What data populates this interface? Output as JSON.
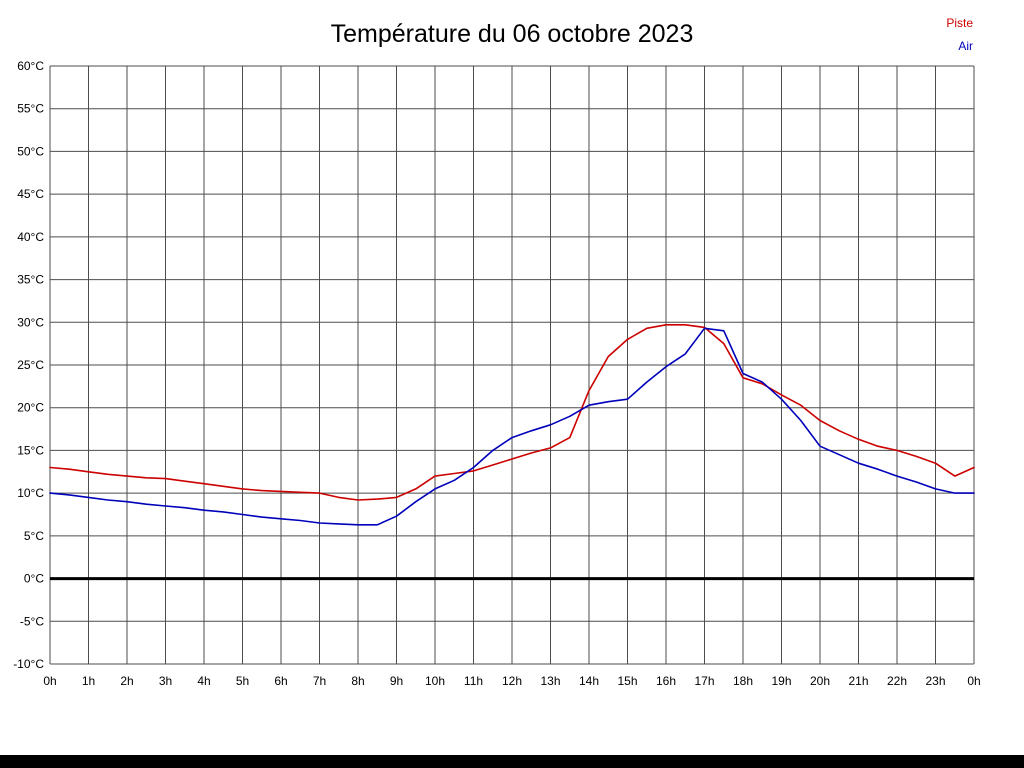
{
  "title": "Température du 06 octobre 2023",
  "legend": {
    "piste": {
      "label": "Piste",
      "color": "#cc0000"
    },
    "air": {
      "label": "Air",
      "color": "#0000bb"
    }
  },
  "chart_data": {
    "type": "line",
    "title": "Température du 06 octobre 2023",
    "xlabel": "",
    "ylabel": "",
    "ylim": [
      -10,
      60
    ],
    "ytick_step": 5,
    "xlim_hours": [
      0,
      24
    ],
    "grid": true,
    "zero_line_value": 0,
    "legend_position": "top-right",
    "y_ticks": [
      "60°C",
      "55°C",
      "50°C",
      "45°C",
      "40°C",
      "35°C",
      "30°C",
      "25°C",
      "20°C",
      "15°C",
      "10°C",
      "5°C",
      "0°C",
      "-5°C",
      "-10°C"
    ],
    "y_tick_values": [
      60,
      55,
      50,
      45,
      40,
      35,
      30,
      25,
      20,
      15,
      10,
      5,
      0,
      -5,
      -10
    ],
    "x_ticks": [
      "0h",
      "1h",
      "2h",
      "3h",
      "4h",
      "5h",
      "6h",
      "7h",
      "8h",
      "9h",
      "10h",
      "11h",
      "12h",
      "13h",
      "14h",
      "15h",
      "16h",
      "17h",
      "18h",
      "19h",
      "20h",
      "21h",
      "22h",
      "23h",
      "0h"
    ],
    "x": [
      0,
      0.5,
      1,
      1.5,
      2,
      2.5,
      3,
      3.5,
      4,
      4.5,
      5,
      5.5,
      6,
      6.5,
      7,
      7.5,
      8,
      8.5,
      9,
      9.5,
      10,
      10.5,
      11,
      11.5,
      12,
      12.5,
      13,
      13.5,
      14,
      14.5,
      15,
      15.5,
      16,
      16.5,
      17,
      17.5,
      18,
      18.5,
      19,
      19.5,
      20,
      20.5,
      21,
      21.5,
      22,
      22.5,
      23,
      23.5,
      24
    ],
    "series": [
      {
        "name": "Piste",
        "color": "#cc0000",
        "values": [
          13,
          12.8,
          12.5,
          12.2,
          12,
          11.8,
          11.7,
          11.4,
          11.1,
          10.8,
          10.5,
          10.3,
          10.2,
          10.1,
          10,
          9.5,
          9.2,
          9.3,
          9.5,
          10.5,
          12,
          12.3,
          12.6,
          13.3,
          14,
          14.7,
          15.3,
          16.5,
          22,
          26,
          28,
          29.3,
          29.7,
          29.7,
          29.4,
          27.5,
          23.5,
          22.8,
          21.5,
          20.3,
          18.5,
          17.3,
          16.3,
          15.5,
          15,
          14.3,
          13.5,
          12,
          13
        ]
      },
      {
        "name": "Air",
        "color": "#0000bb",
        "values": [
          10,
          9.8,
          9.5,
          9.2,
          9,
          8.7,
          8.5,
          8.3,
          8,
          7.8,
          7.5,
          7.2,
          7,
          6.8,
          6.5,
          6.4,
          6.3,
          6.3,
          7.3,
          9,
          10.5,
          11.5,
          13,
          15,
          16.5,
          17.3,
          18,
          19,
          20.3,
          20.7,
          21,
          23,
          24.8,
          26.3,
          29.3,
          29,
          24,
          23,
          21,
          18.5,
          15.5,
          14.5,
          13.5,
          12.8,
          12,
          11.3,
          10.5,
          10,
          10
        ]
      }
    ]
  }
}
